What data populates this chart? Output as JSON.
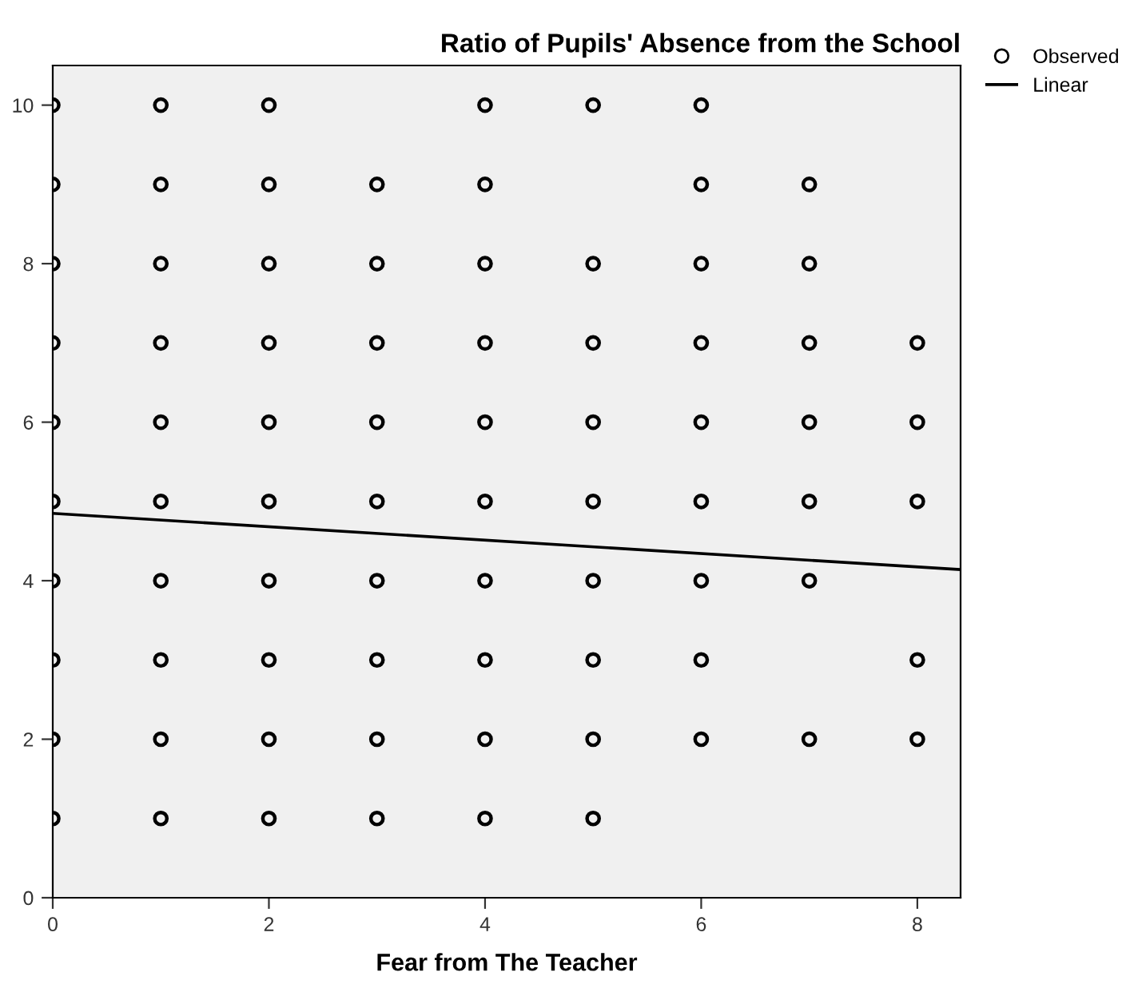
{
  "chart_data": {
    "type": "scatter",
    "title": "Ratio of Pupils' Absence from the School",
    "xlabel": "Fear from The Teacher",
    "xlim": [
      0,
      8.4
    ],
    "ylim": [
      0,
      10.5
    ],
    "xticks": [
      0,
      2,
      4,
      6,
      8
    ],
    "yticks": [
      0,
      2,
      4,
      6,
      8,
      10
    ],
    "grid": false,
    "legend": "top right",
    "marker": "circle",
    "series": [
      {
        "name": "Observed",
        "color": "#000000",
        "x": [
          0,
          0,
          0,
          0,
          0,
          0,
          0,
          0,
          0,
          0,
          1,
          1,
          1,
          1,
          1,
          1,
          1,
          1,
          1,
          1,
          2,
          2,
          2,
          2,
          2,
          2,
          2,
          2,
          2,
          2,
          3,
          3,
          3,
          3,
          3,
          3,
          3,
          3,
          3,
          4,
          4,
          4,
          4,
          4,
          4,
          4,
          4,
          4,
          4,
          5,
          5,
          5,
          5,
          5,
          5,
          5,
          5,
          5,
          6,
          6,
          6,
          6,
          6,
          6,
          6,
          6,
          6,
          7,
          7,
          7,
          7,
          7,
          7,
          7,
          8,
          8,
          8,
          8,
          8
        ],
        "values": [
          1,
          2,
          3,
          4,
          5,
          6,
          7,
          8,
          9,
          10,
          1,
          2,
          3,
          4,
          5,
          6,
          7,
          8,
          9,
          10,
          1,
          2,
          3,
          4,
          5,
          6,
          7,
          8,
          9,
          10,
          1,
          2,
          3,
          4,
          5,
          6,
          7,
          8,
          9,
          1,
          2,
          3,
          4,
          5,
          6,
          7,
          8,
          9,
          10,
          1,
          2,
          3,
          4,
          5,
          6,
          7,
          8,
          10,
          2,
          3,
          4,
          5,
          6,
          7,
          8,
          9,
          10,
          2,
          4,
          5,
          6,
          7,
          8,
          9,
          2,
          3,
          5,
          6,
          7
        ]
      },
      {
        "name": "Linear",
        "type": "line",
        "color": "#000000",
        "x": [
          0,
          8.4
        ],
        "values": [
          4.85,
          4.14
        ],
        "line_style": "solid",
        "marker": "none"
      }
    ]
  }
}
